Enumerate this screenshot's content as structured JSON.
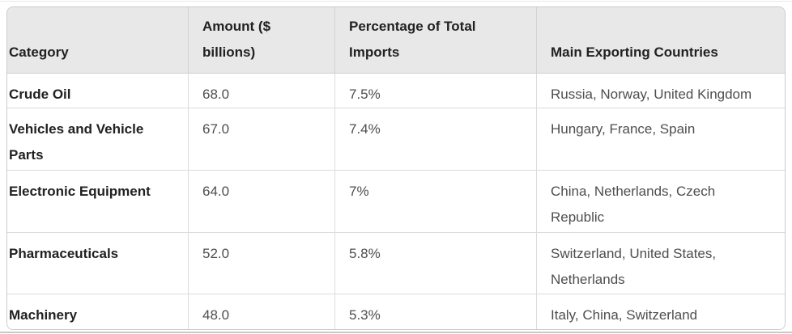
{
  "table": {
    "columns": [
      "Category",
      "Amount ($\nbillions)",
      "Percentage of Total\nImports",
      "Main Exporting Countries"
    ],
    "rows": [
      [
        "Crude Oil",
        "68.0",
        "7.5%",
        "Russia, Norway, United Kingdom"
      ],
      [
        "Vehicles and Vehicle\nParts",
        "67.0",
        "7.4%",
        "Hungary, France, Spain"
      ],
      [
        "Electronic Equipment",
        "64.0",
        "7%",
        "China, Netherlands, Czech\nRepublic"
      ],
      [
        "Pharmaceuticals",
        "52.0",
        "5.8%",
        "Switzerland, United States,\nNetherlands"
      ],
      [
        "Machinery",
        "48.0",
        "5.3%",
        "Italy, China, Switzerland"
      ]
    ]
  },
  "colors": {
    "header_bg": "#e8e8e8",
    "header_text": "#212121",
    "body_text": "#4e4e4e",
    "border": "#dcdcdc",
    "outer_border": "#cbcbcb"
  }
}
